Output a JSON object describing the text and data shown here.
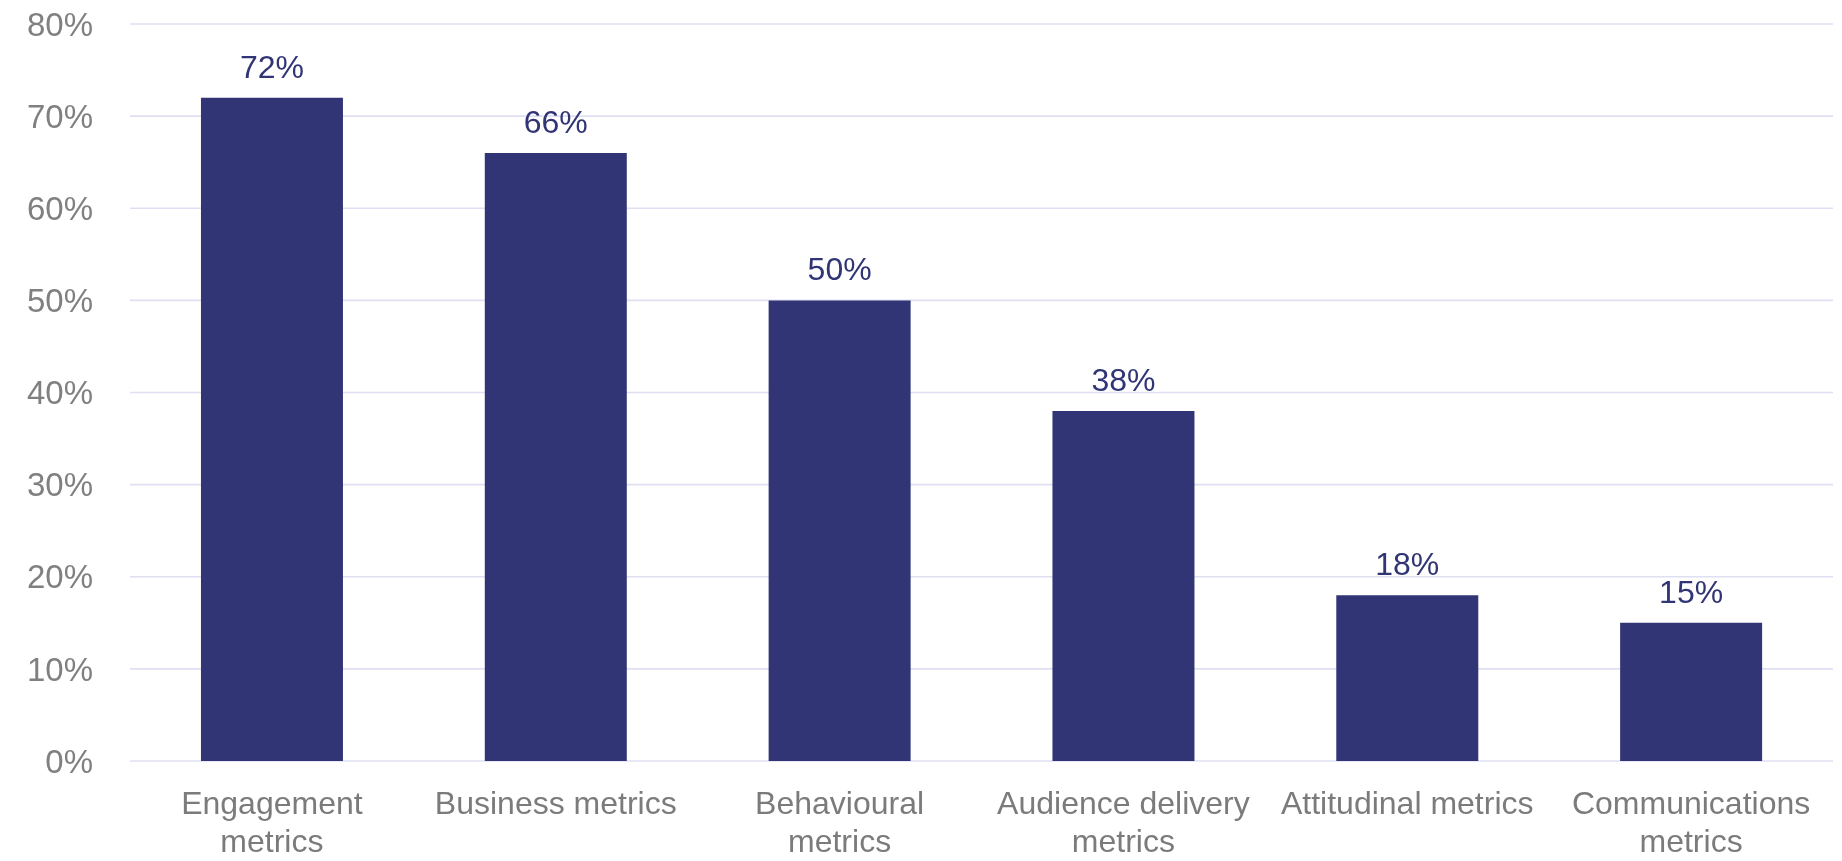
{
  "chart_data": {
    "type": "bar",
    "categories": [
      "Engagement metrics",
      "Business metrics",
      "Behavioural metrics",
      "Audience delivery metrics",
      "Attitudinal metrics",
      "Communications metrics"
    ],
    "values": [
      72,
      66,
      50,
      38,
      18,
      15
    ],
    "value_labels": [
      "72%",
      "66%",
      "50%",
      "38%",
      "18%",
      "15%"
    ],
    "color": "#313575",
    "ylim": [
      0,
      80
    ],
    "yticks": [
      {
        "value": 0,
        "label": "0%"
      },
      {
        "value": 10,
        "label": "10%"
      },
      {
        "value": 20,
        "label": "20%"
      },
      {
        "value": 30,
        "label": "30%"
      },
      {
        "value": 40,
        "label": "40%"
      },
      {
        "value": 50,
        "label": "50%"
      },
      {
        "value": 60,
        "label": "60%"
      },
      {
        "value": 70,
        "label": "70%"
      },
      {
        "value": 80,
        "label": "80%"
      }
    ],
    "grid": "y"
  }
}
